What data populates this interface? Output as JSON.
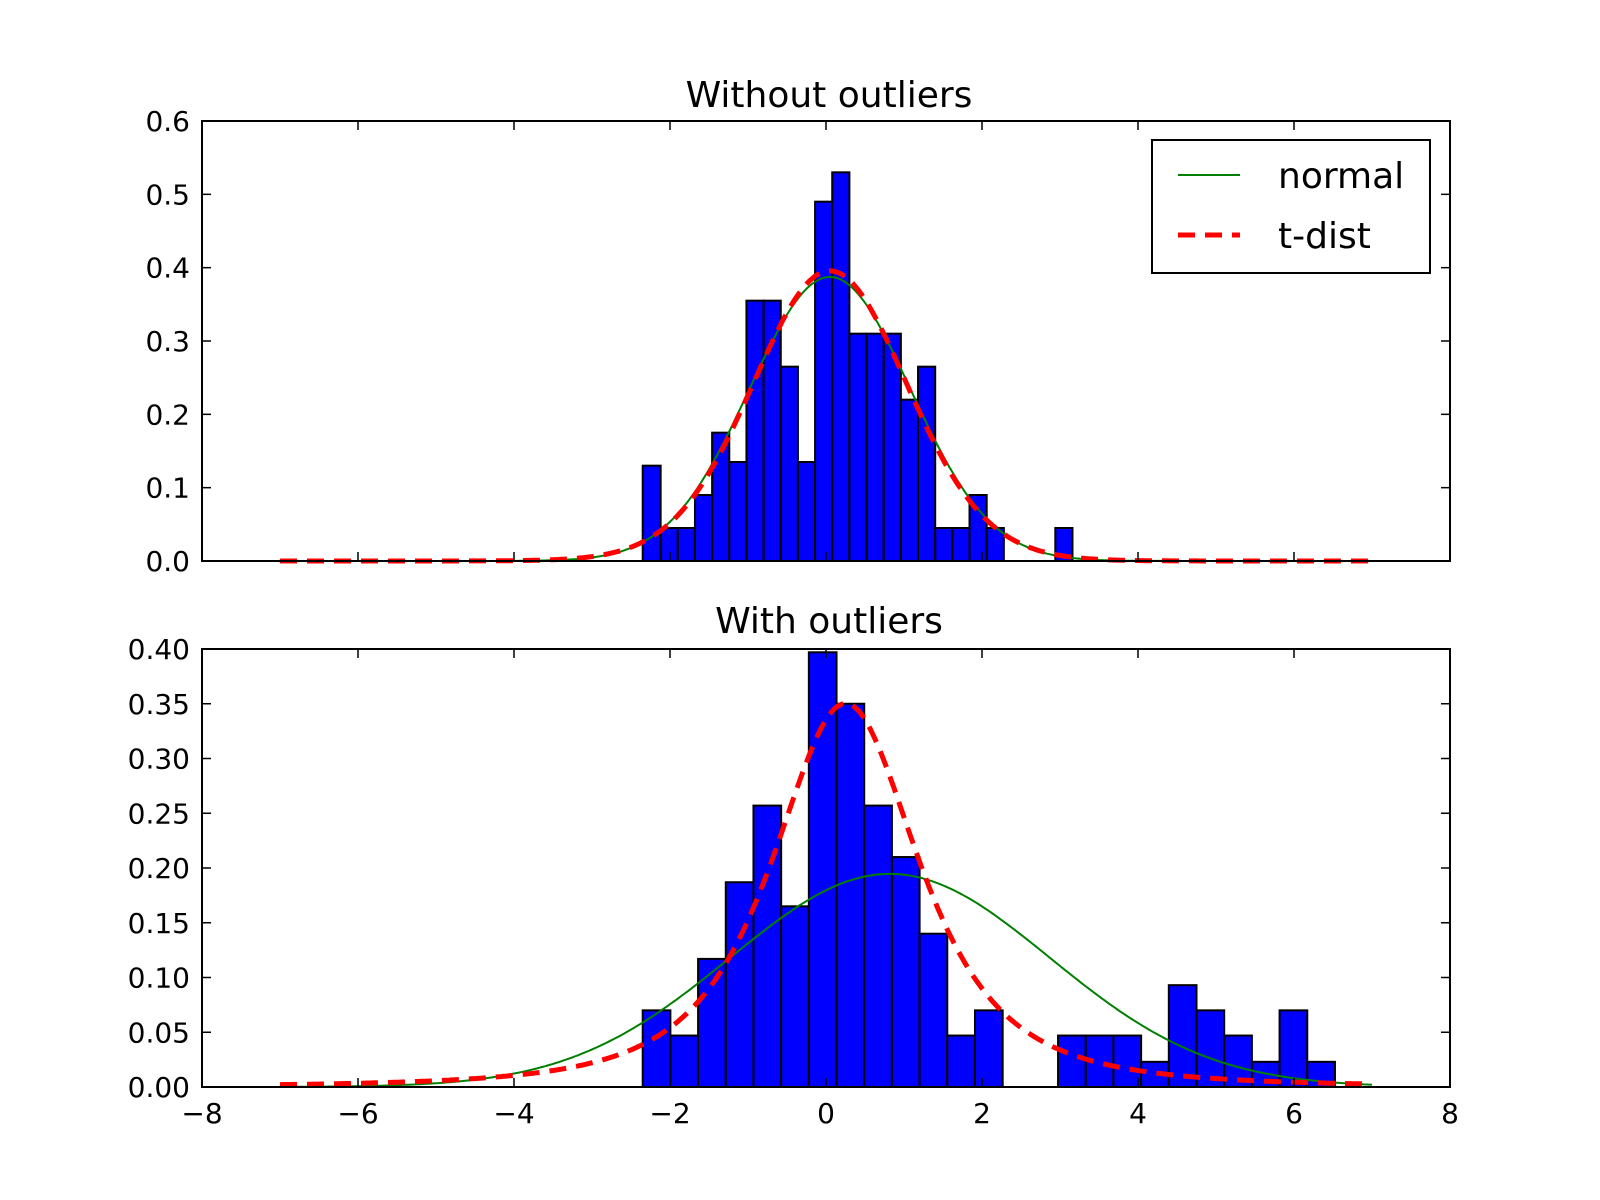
{
  "chart_data": [
    {
      "type": "bar",
      "title": "Without outliers",
      "xlabel": "",
      "ylabel": "",
      "xlim": [
        -8,
        8
      ],
      "ylim": [
        0,
        0.6
      ],
      "yticks": [
        "0.0",
        "0.1",
        "0.2",
        "0.3",
        "0.4",
        "0.5",
        "0.6"
      ],
      "xticks_labeled": false,
      "grid": false,
      "legend": {
        "position": "top-right",
        "entries": [
          {
            "label": "normal",
            "color": "#008000",
            "style": "solid"
          },
          {
            "label": "t-dist",
            "color": "#ff0000",
            "style": "dashed"
          }
        ]
      },
      "histogram": {
        "color": "#0000ff",
        "edges": [
          -2.35,
          -2.12,
          -1.9,
          -1.68,
          -1.46,
          -1.24,
          -1.02,
          -0.8,
          -0.58,
          -0.36,
          -0.14,
          0.08,
          0.3,
          0.52,
          0.74,
          0.96,
          1.18,
          1.4,
          1.62,
          1.84,
          2.06,
          2.28,
          2.5,
          2.72,
          2.94,
          3.16
        ],
        "values": [
          0.13,
          0.045,
          0.045,
          0.09,
          0.175,
          0.135,
          0.355,
          0.355,
          0.265,
          0.135,
          0.49,
          0.53,
          0.31,
          0.31,
          0.31,
          0.22,
          0.265,
          0.045,
          0.045,
          0.09,
          0.045,
          0,
          0,
          0,
          0.045
        ]
      },
      "series": [
        {
          "name": "normal",
          "kind": "normal",
          "color": "#008000",
          "mean": 0.05,
          "sd": 1.03,
          "xmin": -7,
          "xmax": 7
        },
        {
          "name": "t-dist",
          "kind": "t",
          "color": "#ff0000",
          "loc": 0.05,
          "scale": 1.0,
          "df": 30,
          "xmin": -7,
          "xmax": 7
        }
      ]
    },
    {
      "type": "bar",
      "title": "With outliers",
      "xlabel": "",
      "ylabel": "",
      "xlim": [
        -8,
        8
      ],
      "ylim": [
        0,
        0.4
      ],
      "yticks": [
        "0.00",
        "0.05",
        "0.10",
        "0.15",
        "0.20",
        "0.25",
        "0.30",
        "0.35",
        "0.40"
      ],
      "xticks": [
        "−8",
        "−6",
        "−4",
        "−2",
        "0",
        "2",
        "4",
        "6",
        "8"
      ],
      "xticks_labeled": true,
      "grid": false,
      "histogram": {
        "color": "#0000ff",
        "edges": [
          -2.35,
          -1.995,
          -1.64,
          -1.285,
          -0.93,
          -0.575,
          -0.22,
          0.135,
          0.49,
          0.845,
          1.2,
          1.555,
          1.91,
          2.265,
          2.62,
          2.975,
          3.33,
          3.685,
          4.04,
          4.395,
          4.75,
          5.105,
          5.46,
          5.815,
          6.17,
          6.525
        ],
        "values": [
          0.07,
          0.047,
          0.117,
          0.187,
          0.257,
          0.165,
          0.397,
          0.35,
          0.257,
          0.21,
          0.14,
          0.047,
          0.07,
          0,
          0,
          0.047,
          0.047,
          0.047,
          0.023,
          0.093,
          0.07,
          0.047,
          0.023,
          0.07,
          0.023
        ]
      },
      "series": [
        {
          "name": "normal",
          "kind": "normal",
          "color": "#008000",
          "mean": 0.82,
          "sd": 2.05,
          "xmin": -7,
          "xmax": 7
        },
        {
          "name": "t-dist",
          "kind": "t",
          "color": "#ff0000",
          "loc": 0.25,
          "scale": 1.02,
          "df": 2.2,
          "xmin": -7,
          "xmax": 7
        }
      ]
    }
  ]
}
